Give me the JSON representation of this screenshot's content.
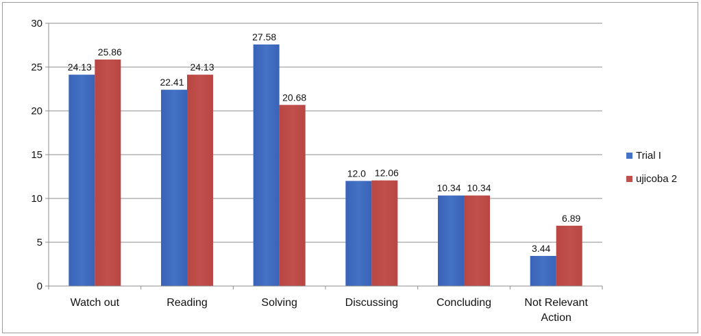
{
  "chart_data": {
    "type": "bar",
    "title": "",
    "xlabel": "",
    "ylabel": "",
    "ylim": [
      0,
      30
    ],
    "yticks": [
      0,
      5,
      10,
      15,
      20,
      25,
      30
    ],
    "grid": true,
    "legend_position": "right",
    "categories": [
      [
        "Watch out"
      ],
      [
        "Reading"
      ],
      [
        "Solving"
      ],
      [
        "Discussing"
      ],
      [
        "Concluding"
      ],
      [
        "Not Relevant",
        "Action"
      ]
    ],
    "series": [
      {
        "name": "Trial I",
        "color": "#4472c4",
        "values": [
          24.13,
          22.41,
          27.58,
          12.0,
          10.34,
          3.44
        ],
        "labels": [
          "24.13",
          "22.41",
          "27.58",
          "12.0",
          "10.34",
          "3.44"
        ]
      },
      {
        "name": "ujicoba 2",
        "color": "#c0504d",
        "values": [
          25.86,
          24.13,
          20.68,
          12.06,
          10.34,
          6.89
        ],
        "labels": [
          "25.86",
          "24.13",
          "20.68",
          "12.06",
          "10.34",
          "6.89"
        ]
      }
    ]
  }
}
